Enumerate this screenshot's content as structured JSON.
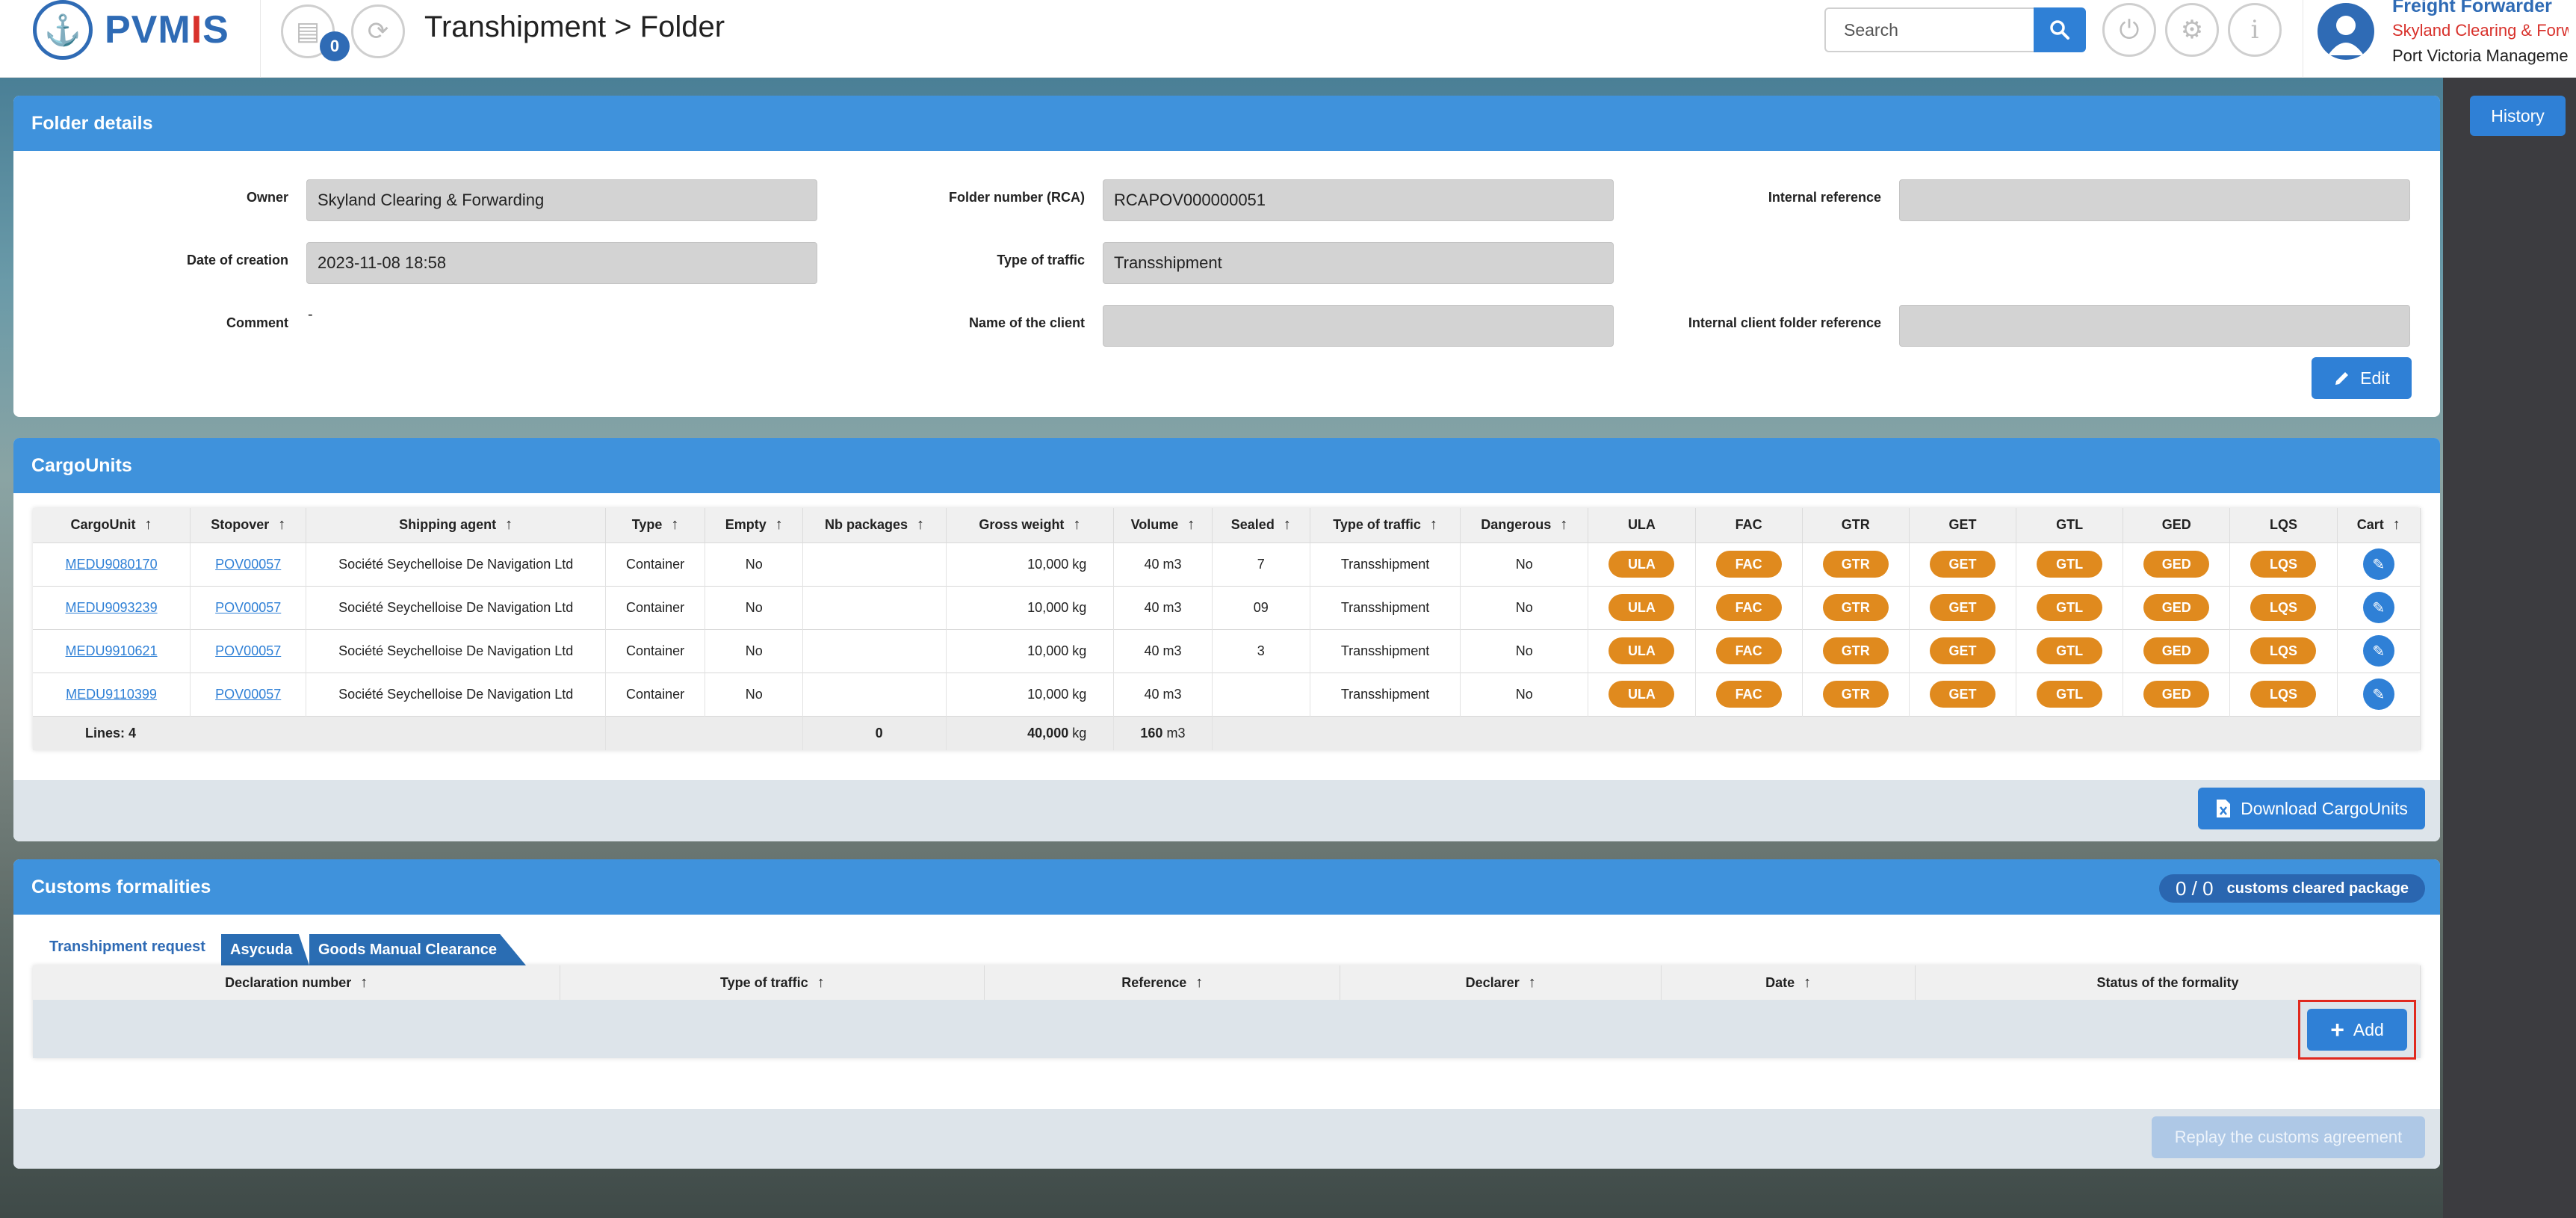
{
  "header": {
    "logo_text_a": "PVM",
    "logo_text_b": "I",
    "logo_text_c": "S",
    "notification_count": "0",
    "page_title": "Transhipment > Folder",
    "search_placeholder": "Search",
    "user_role": "Freight Forwarder",
    "user_org": "Skyland Clearing & Forwarding",
    "user_port": "Port Victoria Management"
  },
  "history_label": "History",
  "folder_details": {
    "title": "Folder details",
    "owner_label": "Owner",
    "owner_value": "Skyland Clearing & Forwarding",
    "date_label": "Date of creation",
    "date_value": "2023-11-08 18:58",
    "comment_label": "Comment",
    "comment_value": "-",
    "folder_number_label": "Folder number (RCA)",
    "folder_number_value": "RCAPOV000000051",
    "traffic_label": "Type of traffic",
    "traffic_value": "Transshipment",
    "client_name_label": "Name of the client",
    "client_name_value": "",
    "internal_ref_label": "Internal reference",
    "internal_ref_value": "",
    "internal_client_ref_label": "Internal client folder reference",
    "internal_client_ref_value": "",
    "edit_label": "Edit"
  },
  "cargo_units": {
    "title": "CargoUnits",
    "columns": [
      "CargoUnit",
      "Stopover",
      "Shipping agent",
      "Type",
      "Empty",
      "Nb packages",
      "Gross weight",
      "Volume",
      "Sealed",
      "Type of traffic",
      "Dangerous",
      "ULA",
      "FAC",
      "GTR",
      "GET",
      "GTL",
      "GED",
      "LQS",
      "Cart"
    ],
    "rows": [
      {
        "unit": "MEDU9080170",
        "stopover": "POV00057",
        "agent": "Société Seychelloise De Navigation Ltd",
        "type": "Container",
        "empty": "No",
        "packages": "",
        "weight": "10,000 kg",
        "volume": "40 m3",
        "sealed": "7",
        "traffic": "Transshipment",
        "dangerous": "No"
      },
      {
        "unit": "MEDU9093239",
        "stopover": "POV00057",
        "agent": "Société Seychelloise De Navigation Ltd",
        "type": "Container",
        "empty": "No",
        "packages": "",
        "weight": "10,000 kg",
        "volume": "40 m3",
        "sealed": "09",
        "traffic": "Transshipment",
        "dangerous": "No"
      },
      {
        "unit": "MEDU9910621",
        "stopover": "POV00057",
        "agent": "Société Seychelloise De Navigation Ltd",
        "type": "Container",
        "empty": "No",
        "packages": "",
        "weight": "10,000 kg",
        "volume": "40 m3",
        "sealed": "3",
        "traffic": "Transshipment",
        "dangerous": "No"
      },
      {
        "unit": "MEDU9110399",
        "stopover": "POV00057",
        "agent": "Société Seychelloise De Navigation Ltd",
        "type": "Container",
        "empty": "No",
        "packages": "",
        "weight": "10,000 kg",
        "volume": "40 m3",
        "sealed": "",
        "traffic": "Transshipment",
        "dangerous": "No"
      }
    ],
    "pill_labels": [
      "ULA",
      "FAC",
      "GTR",
      "GET",
      "GTL",
      "GED",
      "LQS"
    ],
    "totals": {
      "lines": "Lines: 4",
      "packages": "0",
      "weight_value": "40,000",
      "weight_unit": "kg",
      "volume_value": "160",
      "volume_unit": "m3"
    },
    "download_label": "Download CargoUnits"
  },
  "customs": {
    "title": "Customs formalities",
    "cleared_count": "0 / 0",
    "cleared_label": "customs cleared package",
    "tabs": [
      "Transhipment request",
      "Asycuda",
      "Goods Manual Clearance"
    ],
    "columns": [
      "Declaration number",
      "Type of traffic",
      "Reference",
      "Declarer",
      "Date",
      "Status of the formality"
    ],
    "add_label": "Add",
    "replay_label": "Replay the customs agreement"
  },
  "colors": {
    "primary": "#3f92dc",
    "button": "#2f80d6",
    "pill": "#e08a1e",
    "highlight": "#e0281e"
  }
}
